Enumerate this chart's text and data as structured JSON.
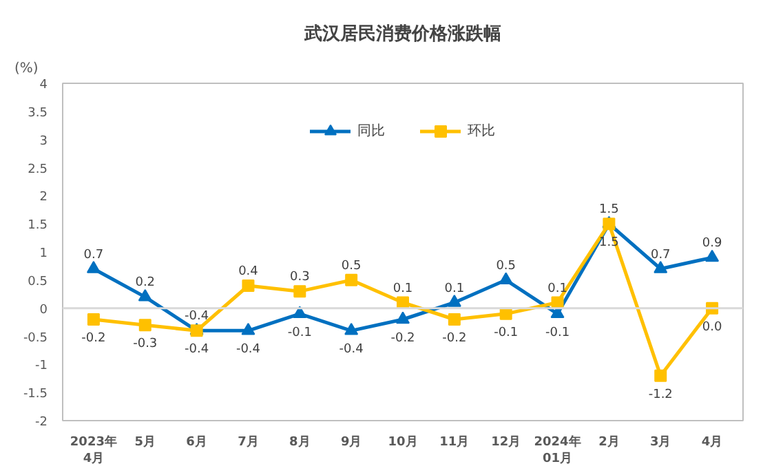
{
  "chart_data": {
    "type": "line",
    "title": "武汉居民消费价格涨跌幅",
    "ylabel": "(%)",
    "categories": [
      "2023年4月",
      "5月",
      "6月",
      "7月",
      "8月",
      "9月",
      "10月",
      "11月",
      "12月",
      "2024年01月",
      "2月",
      "3月",
      "4月"
    ],
    "series": [
      {
        "name": "同比",
        "color": "#0070c0",
        "marker": "triangle",
        "values": [
          0.7,
          0.2,
          -0.4,
          -0.4,
          -0.1,
          -0.4,
          -0.2,
          0.1,
          0.5,
          -0.1,
          1.5,
          0.7,
          0.9
        ],
        "value_labels": [
          "0.7",
          "0.2",
          "-0.4",
          "-0.4",
          "-0.1",
          "-0.4",
          "-0.2",
          "0.1",
          "0.5",
          "-0.1",
          "1.5",
          "0.7",
          "0.9"
        ]
      },
      {
        "name": "环比",
        "color": "#ffc000",
        "marker": "square",
        "values": [
          -0.2,
          -0.3,
          -0.4,
          0.4,
          0.3,
          0.5,
          0.1,
          -0.2,
          -0.1,
          0.1,
          1.5,
          -1.2,
          0.0
        ],
        "value_labels": [
          "-0.2",
          "-0.3",
          "-0.4",
          "0.4",
          "0.3",
          "0.5",
          "0.1",
          "-0.2",
          "-0.1",
          "0.1",
          "1.5",
          "-1.2",
          "0.0"
        ]
      }
    ],
    "ylim": [
      -2,
      4
    ],
    "yticks": [
      -2,
      -1.5,
      -1,
      -0.5,
      0,
      0.5,
      1,
      1.5,
      2,
      2.5,
      3,
      3.5,
      4
    ],
    "ref_lines": [
      {
        "axis": "y",
        "value": 0,
        "color": "#d9d9d9"
      }
    ],
    "grid": false,
    "legend": "top",
    "line_style": "solid"
  }
}
